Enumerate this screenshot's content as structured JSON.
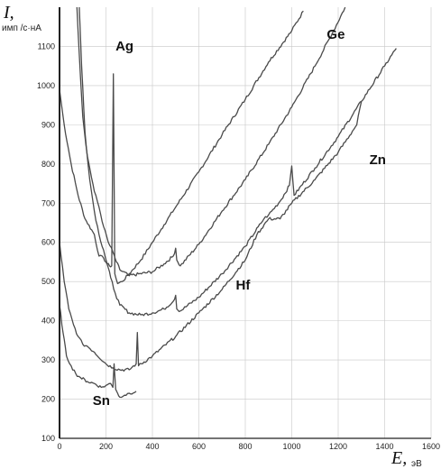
{
  "chart_data": {
    "type": "line",
    "title": "",
    "ylabel_symbol": "I,",
    "ylabel_unit": "имп /с·нА",
    "xlabel_symbol": "E,",
    "xlabel_unit": "эВ",
    "xlim": [
      0,
      1600
    ],
    "ylim": [
      100,
      1200
    ],
    "x_ticks": [
      0,
      200,
      400,
      600,
      800,
      1000,
      1200,
      1400,
      1600
    ],
    "y_ticks": [
      100,
      200,
      300,
      400,
      500,
      600,
      700,
      800,
      900,
      1000,
      1100
    ],
    "grid": true,
    "series": [
      {
        "name": "Ag",
        "points": [
          [
            0,
            990
          ],
          [
            20,
            900
          ],
          [
            50,
            800
          ],
          [
            80,
            720
          ],
          [
            110,
            660
          ],
          [
            150,
            620
          ],
          [
            170,
            565
          ],
          [
            190,
            560
          ],
          [
            205,
            545
          ],
          [
            215,
            540
          ],
          [
            225,
            540
          ],
          [
            232,
            1030
          ],
          [
            238,
            520
          ],
          [
            250,
            495
          ],
          [
            270,
            500
          ],
          [
            300,
            520
          ],
          [
            350,
            555
          ],
          [
            400,
            600
          ],
          [
            450,
            645
          ],
          [
            500,
            690
          ],
          [
            600,
            780
          ],
          [
            700,
            875
          ],
          [
            800,
            965
          ],
          [
            900,
            1060
          ],
          [
            1000,
            1140
          ],
          [
            1050,
            1190
          ]
        ]
      },
      {
        "name": "Ge",
        "points": [
          [
            75,
            1200
          ],
          [
            85,
            1080
          ],
          [
            100,
            920
          ],
          [
            120,
            820
          ],
          [
            150,
            730
          ],
          [
            170,
            690
          ],
          [
            190,
            640
          ],
          [
            210,
            600
          ],
          [
            230,
            575
          ],
          [
            245,
            550
          ],
          [
            260,
            530
          ],
          [
            300,
            515
          ],
          [
            400,
            525
          ],
          [
            450,
            545
          ],
          [
            490,
            565
          ],
          [
            500,
            585
          ],
          [
            505,
            555
          ],
          [
            520,
            540
          ],
          [
            600,
            595
          ],
          [
            700,
            680
          ],
          [
            800,
            760
          ],
          [
            900,
            850
          ],
          [
            1000,
            945
          ],
          [
            1100,
            1050
          ],
          [
            1180,
            1140
          ],
          [
            1230,
            1200
          ]
        ]
      },
      {
        "name": "Zn",
        "points": [
          [
            85,
            1200
          ],
          [
            95,
            1050
          ],
          [
            110,
            880
          ],
          [
            130,
            760
          ],
          [
            150,
            680
          ],
          [
            170,
            620
          ],
          [
            190,
            580
          ],
          [
            205,
            545
          ],
          [
            220,
            510
          ],
          [
            240,
            470
          ],
          [
            260,
            440
          ],
          [
            300,
            420
          ],
          [
            350,
            415
          ],
          [
            400,
            420
          ],
          [
            450,
            430
          ],
          [
            490,
            450
          ],
          [
            500,
            465
          ],
          [
            505,
            430
          ],
          [
            520,
            425
          ],
          [
            600,
            460
          ],
          [
            700,
            520
          ],
          [
            800,
            590
          ],
          [
            880,
            660
          ],
          [
            900,
            670
          ],
          [
            950,
            705
          ],
          [
            990,
            745
          ],
          [
            1000,
            795
          ],
          [
            1010,
            720
          ],
          [
            1100,
            790
          ],
          [
            1200,
            870
          ],
          [
            1300,
            960
          ],
          [
            1400,
            1050
          ],
          [
            1450,
            1095
          ]
        ]
      },
      {
        "name": "Hf",
        "points": [
          [
            0,
            600
          ],
          [
            20,
            500
          ],
          [
            40,
            430
          ],
          [
            60,
            390
          ],
          [
            80,
            360
          ],
          [
            100,
            340
          ],
          [
            120,
            335
          ],
          [
            150,
            320
          ],
          [
            200,
            290
          ],
          [
            230,
            280
          ],
          [
            260,
            275
          ],
          [
            300,
            275
          ],
          [
            330,
            290
          ],
          [
            335,
            370
          ],
          [
            340,
            285
          ],
          [
            400,
            310
          ],
          [
            500,
            360
          ],
          [
            600,
            420
          ],
          [
            700,
            480
          ],
          [
            800,
            555
          ],
          [
            850,
            620
          ],
          [
            900,
            660
          ],
          [
            950,
            660
          ],
          [
            1000,
            700
          ],
          [
            1100,
            760
          ],
          [
            1200,
            830
          ],
          [
            1280,
            900
          ],
          [
            1300,
            960
          ]
        ]
      },
      {
        "name": "Sn",
        "points": [
          [
            0,
            440
          ],
          [
            15,
            370
          ],
          [
            30,
            310
          ],
          [
            50,
            285
          ],
          [
            70,
            265
          ],
          [
            90,
            255
          ],
          [
            120,
            245
          ],
          [
            150,
            240
          ],
          [
            180,
            230
          ],
          [
            200,
            235
          ],
          [
            220,
            240
          ],
          [
            230,
            230
          ],
          [
            235,
            290
          ],
          [
            242,
            225
          ],
          [
            250,
            215
          ],
          [
            260,
            205
          ],
          [
            280,
            210
          ],
          [
            300,
            215
          ],
          [
            330,
            220
          ]
        ]
      }
    ],
    "series_label_text": {
      "Ag": "Ag",
      "Ge": "Ge",
      "Zn": "Zn",
      "Hf": "Hf",
      "Sn": "Sn"
    },
    "series_label_anchor": {
      "Ag": [
        280,
        1090
      ],
      "Ge": [
        1190,
        1120
      ],
      "Zn": [
        1370,
        800
      ],
      "Hf": [
        790,
        480
      ],
      "Sn": [
        180,
        185
      ]
    },
    "line_color": "#4a4a4a",
    "grid_color": "#c8c8c8"
  }
}
